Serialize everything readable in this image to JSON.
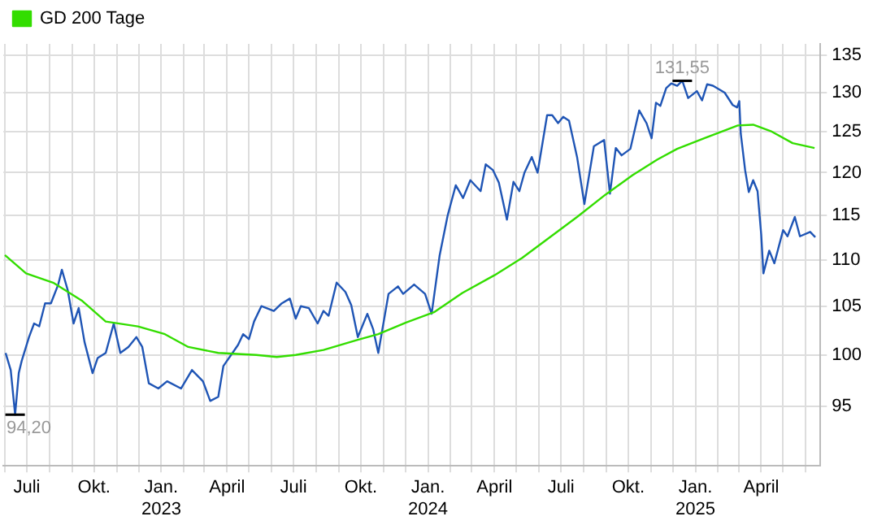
{
  "chart_data": {
    "type": "line",
    "legend": "top left",
    "grid": true,
    "log": "y",
    "marker": "none",
    "line_style": "solid",
    "xlim": [
      "2022-05-30",
      "2025-06-21"
    ],
    "ylim": [
      89.5,
      136.5
    ],
    "yticks": [
      95,
      100,
      105,
      110,
      115,
      120,
      125,
      130,
      135
    ],
    "xticks": [
      {
        "value": "2022-06-01",
        "label": null
      },
      {
        "value": "2022-07-01",
        "label": "Juli"
      },
      {
        "value": "2022-08-01",
        "label": null
      },
      {
        "value": "2022-09-01",
        "label": null
      },
      {
        "value": "2022-10-01",
        "label": "Okt."
      },
      {
        "value": "2022-11-01",
        "label": null
      },
      {
        "value": "2022-12-01",
        "label": null
      },
      {
        "value": "2023-01-01",
        "label": "Jan.\n2023"
      },
      {
        "value": "2023-02-01",
        "label": null
      },
      {
        "value": "2023-03-01",
        "label": null
      },
      {
        "value": "2023-04-01",
        "label": "April"
      },
      {
        "value": "2023-05-01",
        "label": null
      },
      {
        "value": "2023-06-01",
        "label": null
      },
      {
        "value": "2023-07-01",
        "label": "Juli"
      },
      {
        "value": "2023-08-01",
        "label": null
      },
      {
        "value": "2023-09-01",
        "label": null
      },
      {
        "value": "2023-10-01",
        "label": "Okt."
      },
      {
        "value": "2023-11-01",
        "label": null
      },
      {
        "value": "2023-12-01",
        "label": null
      },
      {
        "value": "2024-01-01",
        "label": "Jan.\n2024"
      },
      {
        "value": "2024-02-01",
        "label": null
      },
      {
        "value": "2024-03-01",
        "label": null
      },
      {
        "value": "2024-04-01",
        "label": "April"
      },
      {
        "value": "2024-05-01",
        "label": null
      },
      {
        "value": "2024-06-01",
        "label": null
      },
      {
        "value": "2024-07-01",
        "label": "Juli"
      },
      {
        "value": "2024-08-01",
        "label": null
      },
      {
        "value": "2024-09-01",
        "label": null
      },
      {
        "value": "2024-10-01",
        "label": "Okt."
      },
      {
        "value": "2024-11-01",
        "label": null
      },
      {
        "value": "2024-12-01",
        "label": null
      },
      {
        "value": "2025-01-01",
        "label": "Jan.\n2025"
      },
      {
        "value": "2025-02-01",
        "label": null
      },
      {
        "value": "2025-03-01",
        "label": null
      },
      {
        "value": "2025-04-01",
        "label": "April"
      },
      {
        "value": "2025-05-01",
        "label": null
      },
      {
        "value": "2025-06-01",
        "label": null
      }
    ],
    "annotations": [
      {
        "text": "131,55",
        "x": "2024-12-14",
        "y": 131.55
      },
      {
        "text": "94,20",
        "x": "2022-06-15",
        "y": 94.2
      }
    ],
    "series": [
      {
        "color": "#1f55b5",
        "x": [
          "2022-06-02",
          "2022-06-09",
          "2022-06-15",
          "2022-06-20",
          "2022-06-24",
          "2022-07-04",
          "2022-07-11",
          "2022-07-18",
          "2022-07-26",
          "2022-08-03",
          "2022-08-13",
          "2022-08-18",
          "2022-08-26",
          "2022-09-03",
          "2022-09-10",
          "2022-09-18",
          "2022-09-29",
          "2022-10-06",
          "2022-10-17",
          "2022-10-28",
          "2022-11-06",
          "2022-11-17",
          "2022-11-28",
          "2022-12-06",
          "2022-12-15",
          "2022-12-28",
          "2023-01-09",
          "2023-01-28",
          "2023-02-12",
          "2023-02-27",
          "2023-03-09",
          "2023-03-20",
          "2023-03-27",
          "2023-04-16",
          "2023-04-23",
          "2023-05-01",
          "2023-05-08",
          "2023-05-18",
          "2023-06-04",
          "2023-06-15",
          "2023-06-26",
          "2023-07-04",
          "2023-07-11",
          "2023-07-22",
          "2023-08-03",
          "2023-08-11",
          "2023-08-18",
          "2023-08-29",
          "2023-09-10",
          "2023-09-18",
          "2023-09-27",
          "2023-10-10",
          "2023-10-18",
          "2023-10-25",
          "2023-11-08",
          "2023-11-21",
          "2023-11-28",
          "2023-12-13",
          "2023-12-28",
          "2024-01-06",
          "2024-01-17",
          "2024-01-28",
          "2024-02-08",
          "2024-02-18",
          "2024-02-28",
          "2024-03-13",
          "2024-03-20",
          "2024-03-30",
          "2024-04-07",
          "2024-04-18",
          "2024-04-27",
          "2024-05-05",
          "2024-05-12",
          "2024-05-22",
          "2024-05-30",
          "2024-06-12",
          "2024-06-19",
          "2024-06-27",
          "2024-07-04",
          "2024-07-12",
          "2024-07-23",
          "2024-08-02",
          "2024-08-15",
          "2024-08-29",
          "2024-09-06",
          "2024-09-14",
          "2024-09-22",
          "2024-10-04",
          "2024-10-16",
          "2024-10-26",
          "2024-11-02",
          "2024-11-08",
          "2024-11-14",
          "2024-11-22",
          "2024-11-29",
          "2024-12-07",
          "2024-12-14",
          "2024-12-22",
          "2025-01-03",
          "2025-01-10",
          "2025-01-17",
          "2025-01-25",
          "2025-02-10",
          "2025-02-21",
          "2025-02-27",
          "2025-03-02",
          "2025-03-04",
          "2025-03-10",
          "2025-03-15",
          "2025-03-21",
          "2025-03-27",
          "2025-04-01",
          "2025-04-04",
          "2025-04-12",
          "2025-04-19",
          "2025-05-01",
          "2025-05-07",
          "2025-05-17",
          "2025-05-24",
          "2025-06-07",
          "2025-06-14"
        ],
        "values": [
          100.2,
          98.5,
          94.2,
          98.2,
          99.4,
          101.8,
          103.2,
          102.9,
          105.3,
          105.3,
          107.3,
          108.9,
          106.7,
          103.2,
          104.8,
          101.3,
          98.2,
          99.7,
          100.2,
          103.2,
          100.2,
          100.8,
          101.8,
          100.8,
          97.2,
          96.7,
          97.4,
          96.7,
          98.5,
          97.4,
          95.5,
          95.9,
          98.9,
          101.0,
          102.1,
          101.6,
          103.4,
          105.0,
          104.5,
          105.3,
          105.8,
          103.7,
          105.0,
          104.8,
          103.2,
          104.5,
          104.0,
          107.5,
          106.5,
          105.1,
          101.8,
          104.2,
          102.6,
          100.2,
          106.3,
          107.1,
          106.3,
          107.3,
          106.3,
          104.2,
          110.5,
          115.0,
          118.5,
          117.0,
          119.1,
          117.8,
          121.0,
          120.3,
          118.8,
          114.5,
          118.9,
          117.8,
          120.0,
          121.9,
          120.0,
          127.1,
          127.1,
          126.1,
          126.9,
          126.4,
          121.9,
          116.3,
          123.2,
          124.0,
          117.5,
          123.0,
          122.1,
          122.9,
          127.7,
          126.1,
          124.2,
          128.7,
          128.3,
          130.6,
          131.2,
          130.9,
          131.55,
          129.3,
          130.2,
          129.0,
          131.1,
          130.9,
          130.0,
          128.4,
          128.1,
          128.9,
          124.8,
          120.3,
          117.7,
          119.1,
          117.8,
          112.8,
          108.5,
          111.0,
          109.6,
          113.3,
          112.6,
          114.8,
          112.6,
          113.1,
          112.5
        ]
      },
      {
        "name": "GD 200 Tage",
        "color": "#33dd00",
        "x": [
          "2022-06-01",
          "2022-06-30",
          "2022-08-06",
          "2022-09-14",
          "2022-10-17",
          "2022-11-30",
          "2023-01-06",
          "2023-02-07",
          "2023-03-20",
          "2023-05-11",
          "2023-06-08",
          "2023-07-04",
          "2023-08-11",
          "2023-09-26",
          "2023-10-25",
          "2023-12-02",
          "2024-01-10",
          "2024-02-17",
          "2024-04-01",
          "2024-05-09",
          "2024-07-23",
          "2024-08-31",
          "2024-10-07",
          "2024-11-10",
          "2024-12-07",
          "2025-01-13",
          "2025-02-28",
          "2025-03-21",
          "2025-04-14",
          "2025-05-14",
          "2025-06-13"
        ],
        "values": [
          110.5,
          108.5,
          107.5,
          105.6,
          103.4,
          102.9,
          102.1,
          100.8,
          100.2,
          100.0,
          99.8,
          100.0,
          100.5,
          101.5,
          102.1,
          103.3,
          104.4,
          106.4,
          108.3,
          110.2,
          114.8,
          117.4,
          119.7,
          121.6,
          122.9,
          124.2,
          125.8,
          125.9,
          125.1,
          123.6,
          123.0
        ]
      }
    ]
  }
}
